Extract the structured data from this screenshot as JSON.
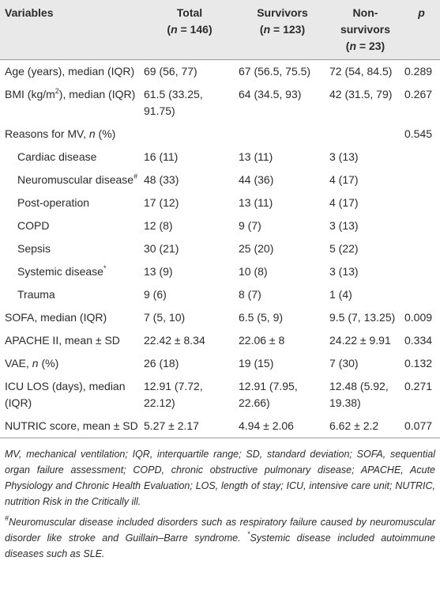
{
  "table": {
    "header": [
      [
        [
          "Variables"
        ]
      ],
      [
        [
          "Total"
        ],
        [
          "(",
          {
            "text": "n",
            "style": "italic"
          },
          " = 146)"
        ]
      ],
      [
        [
          "Survivors"
        ],
        [
          "(",
          {
            "text": "n",
            "style": "italic"
          },
          " = 123)"
        ]
      ],
      [
        [
          "Non-survivors"
        ],
        [
          "(",
          {
            "text": "n",
            "style": "italic"
          },
          " = 23)"
        ]
      ],
      [
        [
          {
            "text": "p",
            "style": "italic"
          }
        ]
      ]
    ],
    "rows": [
      {
        "label": [
          "Age (years), median (IQR)"
        ],
        "total": "69 (56, 77)",
        "survivors": "67 (56.5, 75.5)",
        "non_survivors": "72 (54, 84.5)",
        "p": "0.289"
      },
      {
        "label": [
          "BMI (kg/m",
          {
            "text": "2",
            "style": "sup"
          },
          "), median (IQR)"
        ],
        "total": "61.5 (33.25, 91.75)",
        "survivors": "64 (34.5, 93)",
        "non_survivors": "42 (31.5, 79)",
        "p": "0.267"
      },
      {
        "label": [
          "Reasons for MV, ",
          {
            "text": "n",
            "style": "italic"
          },
          " (%)"
        ],
        "p": "0.545",
        "subrows": [
          {
            "label": [
              "Cardiac disease"
            ],
            "total": "16 (11)",
            "survivors": "13 (11)",
            "non_survivors": "3 (13)"
          },
          {
            "label": [
              "Neuromuscular disease",
              {
                "text": "#",
                "style": "sup"
              }
            ],
            "total": "48 (33)",
            "survivors": "44 (36)",
            "non_survivors": "4 (17)"
          },
          {
            "label": [
              "Post-operation"
            ],
            "total": "17 (12)",
            "survivors": "13 (11)",
            "non_survivors": "4 (17)"
          },
          {
            "label": [
              "COPD"
            ],
            "total": "12 (8)",
            "survivors": "9 (7)",
            "non_survivors": "3 (13)"
          },
          {
            "label": [
              "Sepsis"
            ],
            "total": "30 (21)",
            "survivors": "25 (20)",
            "non_survivors": "5 (22)"
          },
          {
            "label": [
              "Systemic disease",
              {
                "text": "*",
                "style": "sup"
              }
            ],
            "total": "13 (9)",
            "survivors": "10 (8)",
            "non_survivors": "3 (13)"
          },
          {
            "label": [
              "Trauma"
            ],
            "total": "9 (6)",
            "survivors": "8 (7)",
            "non_survivors": "1 (4)"
          }
        ]
      },
      {
        "label": [
          "SOFA, median (IQR)"
        ],
        "total": "7 (5, 10)",
        "survivors": "6.5 (5, 9)",
        "non_survivors": "9.5 (7, 13.25)",
        "p": "0.009"
      },
      {
        "label": [
          "APACHE II, mean ± SD"
        ],
        "total": "22.42 ± 8.34",
        "survivors": "22.06 ± 8",
        "non_survivors": "24.22 ± 9.91",
        "p": "0.334"
      },
      {
        "label": [
          "VAE, ",
          {
            "text": "n",
            "style": "italic"
          },
          " (%)"
        ],
        "total": "26 (18)",
        "survivors": "19 (15)",
        "non_survivors": "7 (30)",
        "p": "0.132"
      },
      {
        "label": [
          "ICU LOS (days), median (IQR)"
        ],
        "total": "12.91 (7.72, 22.12)",
        "survivors": "12.91 (7.95, 22.66)",
        "non_survivors": "12.48 (5.92, 19.38)",
        "p": "0.271"
      },
      {
        "label": [
          "NUTRIC score, mean ± SD"
        ],
        "total": "5.27 ± 2.17",
        "survivors": "4.94 ± 2.06",
        "non_survivors": "6.62 ± 2.2",
        "p": "0.077"
      }
    ],
    "notes": [
      [
        "MV, mechanical ventilation; IQR, interquartile range; SD, standard deviation; SOFA, sequential organ failure assessment; COPD, chronic obstructive pulmonary disease; APACHE, Acute Physiology and Chronic Health Evaluation; LOS, length of stay; ICU, intensive care unit; NUTRIC, nutrition Risk in the Critically ill."
      ],
      [
        {
          "text": "#",
          "style": "sup"
        },
        "Neuromuscular disease included disorders such as respiratory failure caused by neuromuscular disorder like stroke and Guillain–Barre syndrome. ",
        {
          "text": "*",
          "style": "sup"
        },
        "Systemic disease included autoimmune diseases such as SLE."
      ]
    ]
  }
}
